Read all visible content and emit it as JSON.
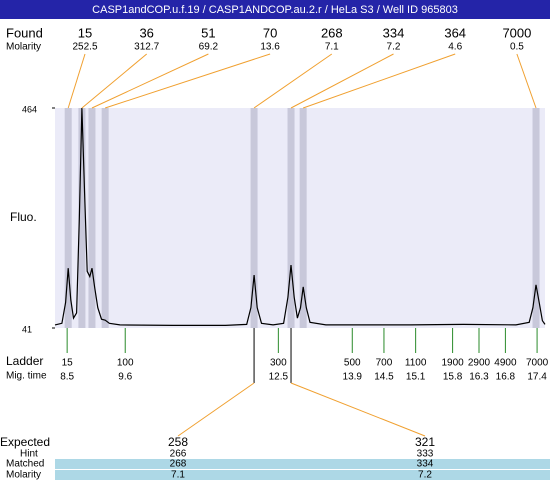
{
  "title": "CASP1andCOP.u.f.19 / CASP1ANDCOP.au.2.r / HeLa S3 / Well ID 965803",
  "found": {
    "label": "Found",
    "molarity_label": "Molarity",
    "sizes": [
      15,
      36,
      51,
      70,
      268,
      334,
      364,
      7000
    ],
    "molarity": [
      252.5,
      312.7,
      69.2,
      13.6,
      7.1,
      7.2,
      4.6,
      0.5
    ],
    "times": [
      8.52,
      8.78,
      8.97,
      9.22,
      12.04,
      12.74,
      12.97,
      17.38
    ]
  },
  "plot": {
    "y_label": "Fluo.",
    "ylim": [
      41,
      464
    ],
    "yticks": [
      464,
      41
    ],
    "xlim": [
      8.27,
      17.55
    ],
    "trace": {
      "x": [
        8.27,
        8.4,
        8.47,
        8.52,
        8.57,
        8.62,
        8.68,
        8.73,
        8.78,
        8.83,
        8.88,
        8.93,
        8.97,
        9.02,
        9.08,
        9.15,
        9.22,
        9.3,
        9.5,
        10.5,
        11.5,
        11.9,
        11.98,
        12.04,
        12.1,
        12.18,
        12.4,
        12.6,
        12.68,
        12.74,
        12.8,
        12.86,
        12.92,
        12.97,
        13.03,
        13.1,
        13.4,
        15.0,
        16.0,
        17.0,
        17.25,
        17.32,
        17.38,
        17.44,
        17.5,
        17.55
      ],
      "y": [
        47,
        50,
        90,
        156,
        95,
        60,
        70,
        250,
        464,
        300,
        150,
        140,
        156,
        120,
        80,
        58,
        56,
        50,
        47,
        46,
        46,
        48,
        80,
        143,
        80,
        50,
        47,
        50,
        100,
        162,
        100,
        60,
        80,
        120,
        80,
        52,
        47,
        47,
        48,
        47,
        52,
        80,
        124,
        90,
        55,
        48
      ]
    }
  },
  "ladder": {
    "label": "Ladder",
    "time_label": "Mig. time",
    "sizes": [
      15,
      100,
      300,
      500,
      700,
      1100,
      1900,
      2900,
      4900,
      7000
    ],
    "times": [
      8.5,
      9.6,
      12.5,
      13.9,
      14.5,
      15.1,
      15.8,
      16.3,
      16.8,
      17.4
    ]
  },
  "expected": {
    "label": "Expected",
    "values": [
      258,
      321
    ],
    "hint_label": "Hint",
    "hint": [
      266,
      333
    ],
    "matched_label": "Matched",
    "matched": [
      268,
      334
    ],
    "molarity_label": "Molarity",
    "molarity": [
      7.1,
      7.2
    ]
  }
}
